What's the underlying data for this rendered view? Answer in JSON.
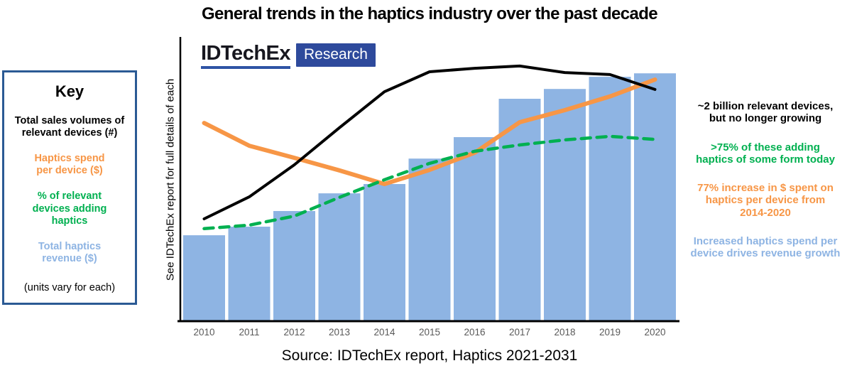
{
  "title": "General trends in the haptics industry over the past decade",
  "logo": {
    "name": "IDTechEx",
    "badge": "Research"
  },
  "key": {
    "title": "Key",
    "items": [
      {
        "label": "Total sales volumes of\nrelevant devices (#)",
        "color": "#000000"
      },
      {
        "label": "Haptics spend\nper device ($)",
        "color": "#F79646"
      },
      {
        "label": "% of relevant\ndevices adding\nhaptics",
        "color": "#00B050"
      },
      {
        "label": "Total haptics\nrevenue ($)",
        "color": "#8EB4E3"
      }
    ],
    "footnote": "(units vary for each)"
  },
  "y_axis_label": "See IDTechEx report for full details of each",
  "annotations": [
    {
      "text": "~2 billion relevant devices,\nbut no longer growing",
      "color": "#000000"
    },
    {
      "text": ">75% of these adding\nhaptics of some form today",
      "color": "#00B050"
    },
    {
      "text": "77% increase in $ spent on\nhaptics per device from\n2014-2020",
      "color": "#F79646"
    },
    {
      "text": "Increased haptics spend per\ndevice drives revenue growth",
      "color": "#8EB4E3"
    }
  ],
  "source": "Source: IDTechEx report, Haptics 2021-2031",
  "colors": {
    "bar_blue": "#8EB4E3",
    "line_black": "#000000",
    "line_orange": "#F79646",
    "line_green": "#00B050",
    "logo_blue": "#2E4A9C",
    "key_border_blue": "#2B5A94",
    "tick_gray": "#595959"
  },
  "chart_data": {
    "type": "bar",
    "subtype": "bar-line-combo",
    "title": "General trends in the haptics industry over the past decade",
    "xlabel": "",
    "ylabel": "See IDTechEx report for full details of each",
    "units_note": "no numeric y axis shown; units vary for each series; values are relative index 0-105 estimated from pixels",
    "ylim": [
      0,
      112
    ],
    "grid": false,
    "legend_position": "left key box",
    "categories": [
      "2010",
      "2011",
      "2012",
      "2013",
      "2014",
      "2015",
      "2016",
      "2017",
      "2018",
      "2019",
      "2020"
    ],
    "series": [
      {
        "key": "total-haptics-revenue",
        "name": "Total haptics revenue ($)",
        "type": "bar",
        "color": "#8EB4E3",
        "values": [
          33.5,
          36.9,
          43.1,
          50.1,
          53.8,
          63.9,
          72.4,
          87.6,
          91.5,
          96.3,
          97.7
        ]
      },
      {
        "key": "haptics-spend-per-device",
        "name": "Haptics spend per device ($)",
        "type": "line",
        "color": "#F79646",
        "width": 6,
        "dash": false,
        "values": [
          78.0,
          69.0,
          64.2,
          59.2,
          53.8,
          59.4,
          66.2,
          78.3,
          83.1,
          88.5,
          95.2
        ]
      },
      {
        "key": "pct-devices-adding-haptics",
        "name": "% of relevant devices adding haptics",
        "type": "line",
        "color": "#00B050",
        "width": 4.5,
        "dash": true,
        "values": [
          36.1,
          37.5,
          41.1,
          48.5,
          55.5,
          62.0,
          66.8,
          69.3,
          71.3,
          72.7,
          71.5
        ]
      },
      {
        "key": "total-sales-volumes",
        "name": "Total sales volumes of relevant devices (#)",
        "type": "line",
        "color": "#000000",
        "width": 4,
        "dash": false,
        "values": [
          40.0,
          48.7,
          61.4,
          76.1,
          90.4,
          98.3,
          99.7,
          100.6,
          98.0,
          97.2,
          91.3
        ]
      }
    ]
  }
}
